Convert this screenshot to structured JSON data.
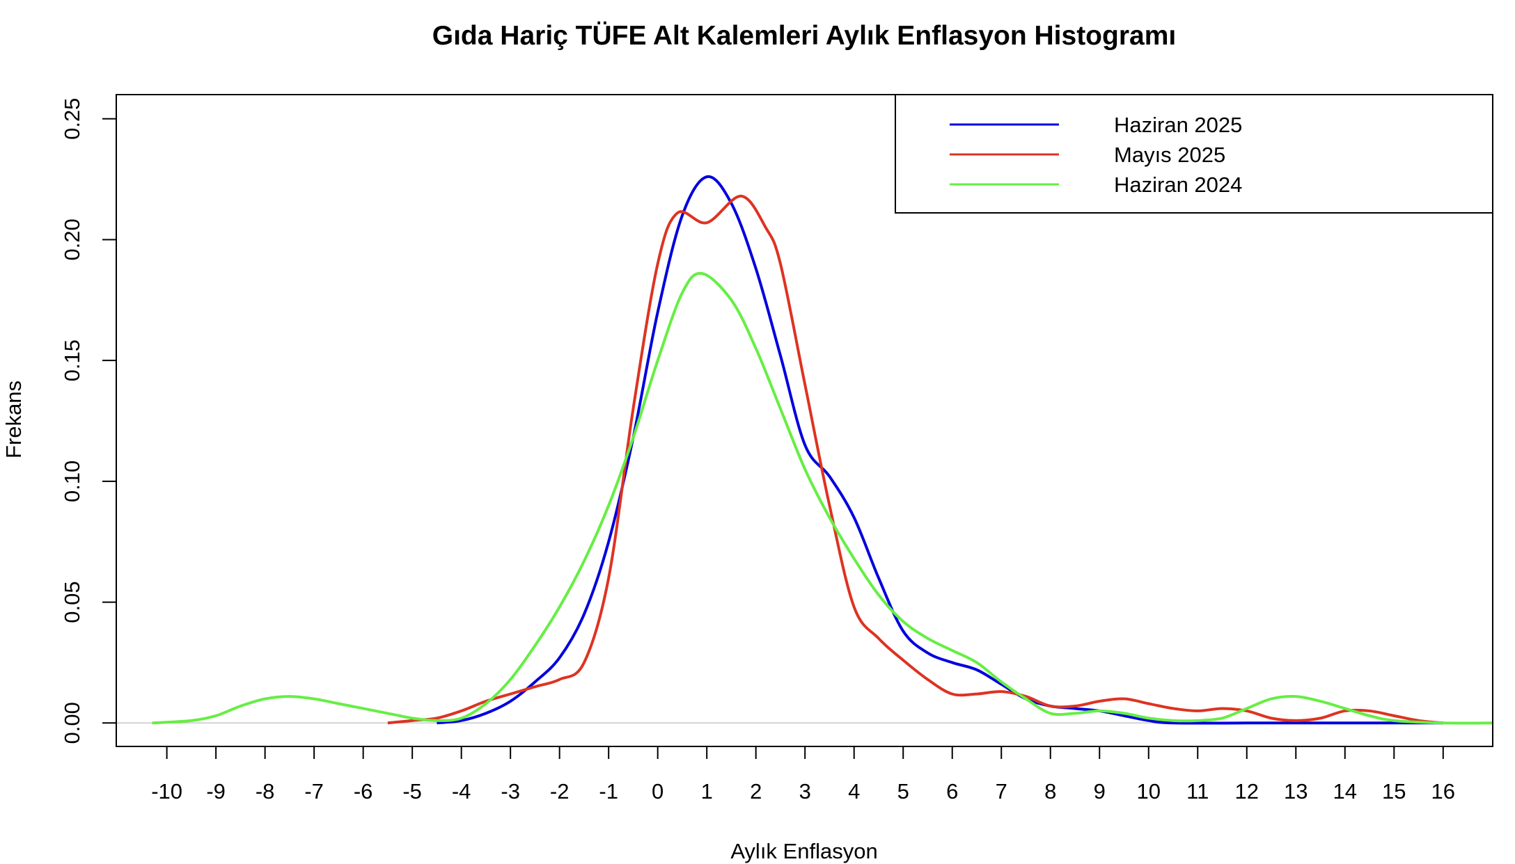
{
  "chart_data": {
    "type": "line",
    "title": "Gıda Hariç TÜFE Alt Kalemleri Aylık Enflasyon Histogramı",
    "xlabel": "Aylık Enflasyon",
    "ylabel": "Frekans",
    "xlim": [
      -11.03,
      17.01
    ],
    "ylim": [
      -0.0097,
      0.26
    ],
    "x_ticks": [
      -10,
      -9,
      -8,
      -7,
      -6,
      -5,
      -4,
      -3,
      -2,
      -1,
      0,
      1,
      2,
      3,
      4,
      5,
      6,
      7,
      8,
      9,
      10,
      11,
      12,
      13,
      14,
      15,
      16
    ],
    "y_ticks": [
      "0.00",
      "0.05",
      "0.10",
      "0.15",
      "0.20",
      "0.25"
    ],
    "grid": false,
    "legend_position": "top-right",
    "series": [
      {
        "name": "Haziran 2025",
        "color": "#0000dd",
        "x": [
          -4.5,
          -4,
          -3.5,
          -3,
          -2.5,
          -2,
          -1.5,
          -1,
          -0.5,
          0,
          0.5,
          1,
          1.5,
          2,
          2.5,
          3,
          3.5,
          4,
          4.5,
          5,
          5.5,
          6,
          6.5,
          7,
          7.5,
          8,
          8.5,
          9,
          9.5,
          10,
          10.5,
          12,
          14,
          16
        ],
        "y": [
          0,
          0.001,
          0.004,
          0.009,
          0.017,
          0.027,
          0.045,
          0.075,
          0.118,
          0.17,
          0.21,
          0.226,
          0.215,
          0.188,
          0.152,
          0.115,
          0.102,
          0.085,
          0.06,
          0.038,
          0.029,
          0.025,
          0.022,
          0.016,
          0.01,
          0.007,
          0.006,
          0.005,
          0.003,
          0.001,
          0,
          0,
          0,
          0
        ]
      },
      {
        "name": "Mayıs 2025",
        "color": "#dd3322",
        "x": [
          -5.5,
          -5,
          -4.5,
          -4,
          -3.5,
          -3,
          -2.5,
          -2,
          -1.5,
          -1,
          -0.5,
          0,
          0.4,
          1,
          1.7,
          2.2,
          2.5,
          3,
          3.5,
          4,
          4.5,
          5,
          5.5,
          6,
          6.5,
          7,
          7.5,
          8,
          8.5,
          9,
          9.5,
          10,
          10.5,
          11,
          11.5,
          12,
          12.5,
          13,
          13.5,
          14,
          14.5,
          15,
          15.5,
          16
        ],
        "y": [
          0,
          0.001,
          0.002,
          0.005,
          0.009,
          0.012,
          0.015,
          0.018,
          0.025,
          0.06,
          0.13,
          0.19,
          0.211,
          0.207,
          0.218,
          0.205,
          0.19,
          0.14,
          0.09,
          0.048,
          0.035,
          0.026,
          0.018,
          0.012,
          0.012,
          0.013,
          0.011,
          0.007,
          0.007,
          0.009,
          0.01,
          0.008,
          0.006,
          0.005,
          0.006,
          0.005,
          0.002,
          0.001,
          0.002,
          0.005,
          0.005,
          0.003,
          0.001,
          0
        ]
      },
      {
        "name": "Haziran 2024",
        "color": "#66ee44",
        "x": [
          -10.3,
          -9.5,
          -9,
          -8.5,
          -8,
          -7.5,
          -7,
          -6.5,
          -6,
          -5.5,
          -5,
          -4.5,
          -4,
          -3.5,
          -3,
          -2.5,
          -2,
          -1.5,
          -1,
          -0.5,
          0,
          0.5,
          0.9,
          1.5,
          2,
          2.5,
          3,
          3.5,
          4,
          4.5,
          5,
          5.5,
          6,
          6.5,
          7,
          7.5,
          8,
          8.5,
          9,
          9.5,
          10,
          10.5,
          11,
          11.5,
          12,
          12.5,
          13,
          13.5,
          14,
          14.5,
          15,
          16,
          17
        ],
        "y": [
          0,
          0.001,
          0.003,
          0.007,
          0.01,
          0.011,
          0.01,
          0.008,
          0.006,
          0.004,
          0.002,
          0.001,
          0.002,
          0.008,
          0.018,
          0.032,
          0.048,
          0.067,
          0.09,
          0.118,
          0.15,
          0.178,
          0.186,
          0.175,
          0.155,
          0.13,
          0.105,
          0.085,
          0.068,
          0.053,
          0.042,
          0.035,
          0.03,
          0.025,
          0.017,
          0.01,
          0.004,
          0.004,
          0.005,
          0.004,
          0.002,
          0.001,
          0.001,
          0.002,
          0.006,
          0.01,
          0.011,
          0.009,
          0.006,
          0.003,
          0.001,
          0,
          0
        ]
      }
    ]
  }
}
